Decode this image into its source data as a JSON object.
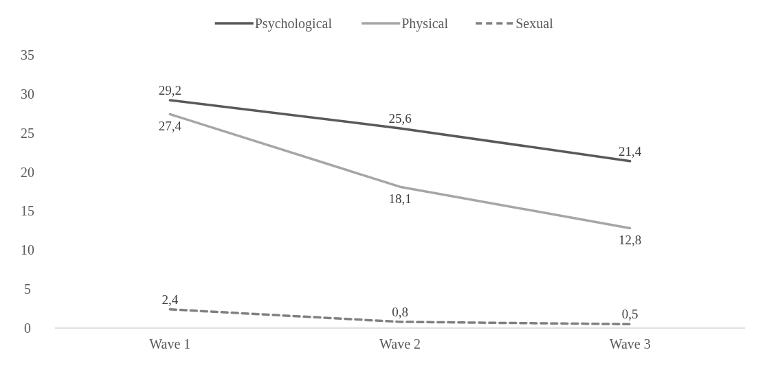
{
  "chart_data": {
    "type": "line",
    "categories": [
      "Wave 1",
      "Wave 2",
      "Wave 3"
    ],
    "series": [
      {
        "name": "Psychological",
        "color": "#595959",
        "values": [
          29.2,
          25.6,
          21.4
        ],
        "value_labels": [
          "29,2",
          "25,6",
          "21,4"
        ],
        "line_style": "solid"
      },
      {
        "name": "Physical",
        "color": "#a6a6a6",
        "values": [
          27.4,
          18.1,
          12.8
        ],
        "value_labels": [
          "27,4",
          "18,1",
          "12,8"
        ],
        "line_style": "solid"
      },
      {
        "name": "Sexual",
        "color": "#808080",
        "values": [
          2.4,
          0.8,
          0.5
        ],
        "value_labels": [
          "2,4",
          "0,8",
          "0,5"
        ],
        "line_style": "dashed"
      }
    ],
    "ylim": [
      0,
      35
    ],
    "yticks": [
      0,
      5,
      10,
      15,
      20,
      25,
      30,
      35
    ],
    "grid": false,
    "legend": "top",
    "marker": "none"
  }
}
